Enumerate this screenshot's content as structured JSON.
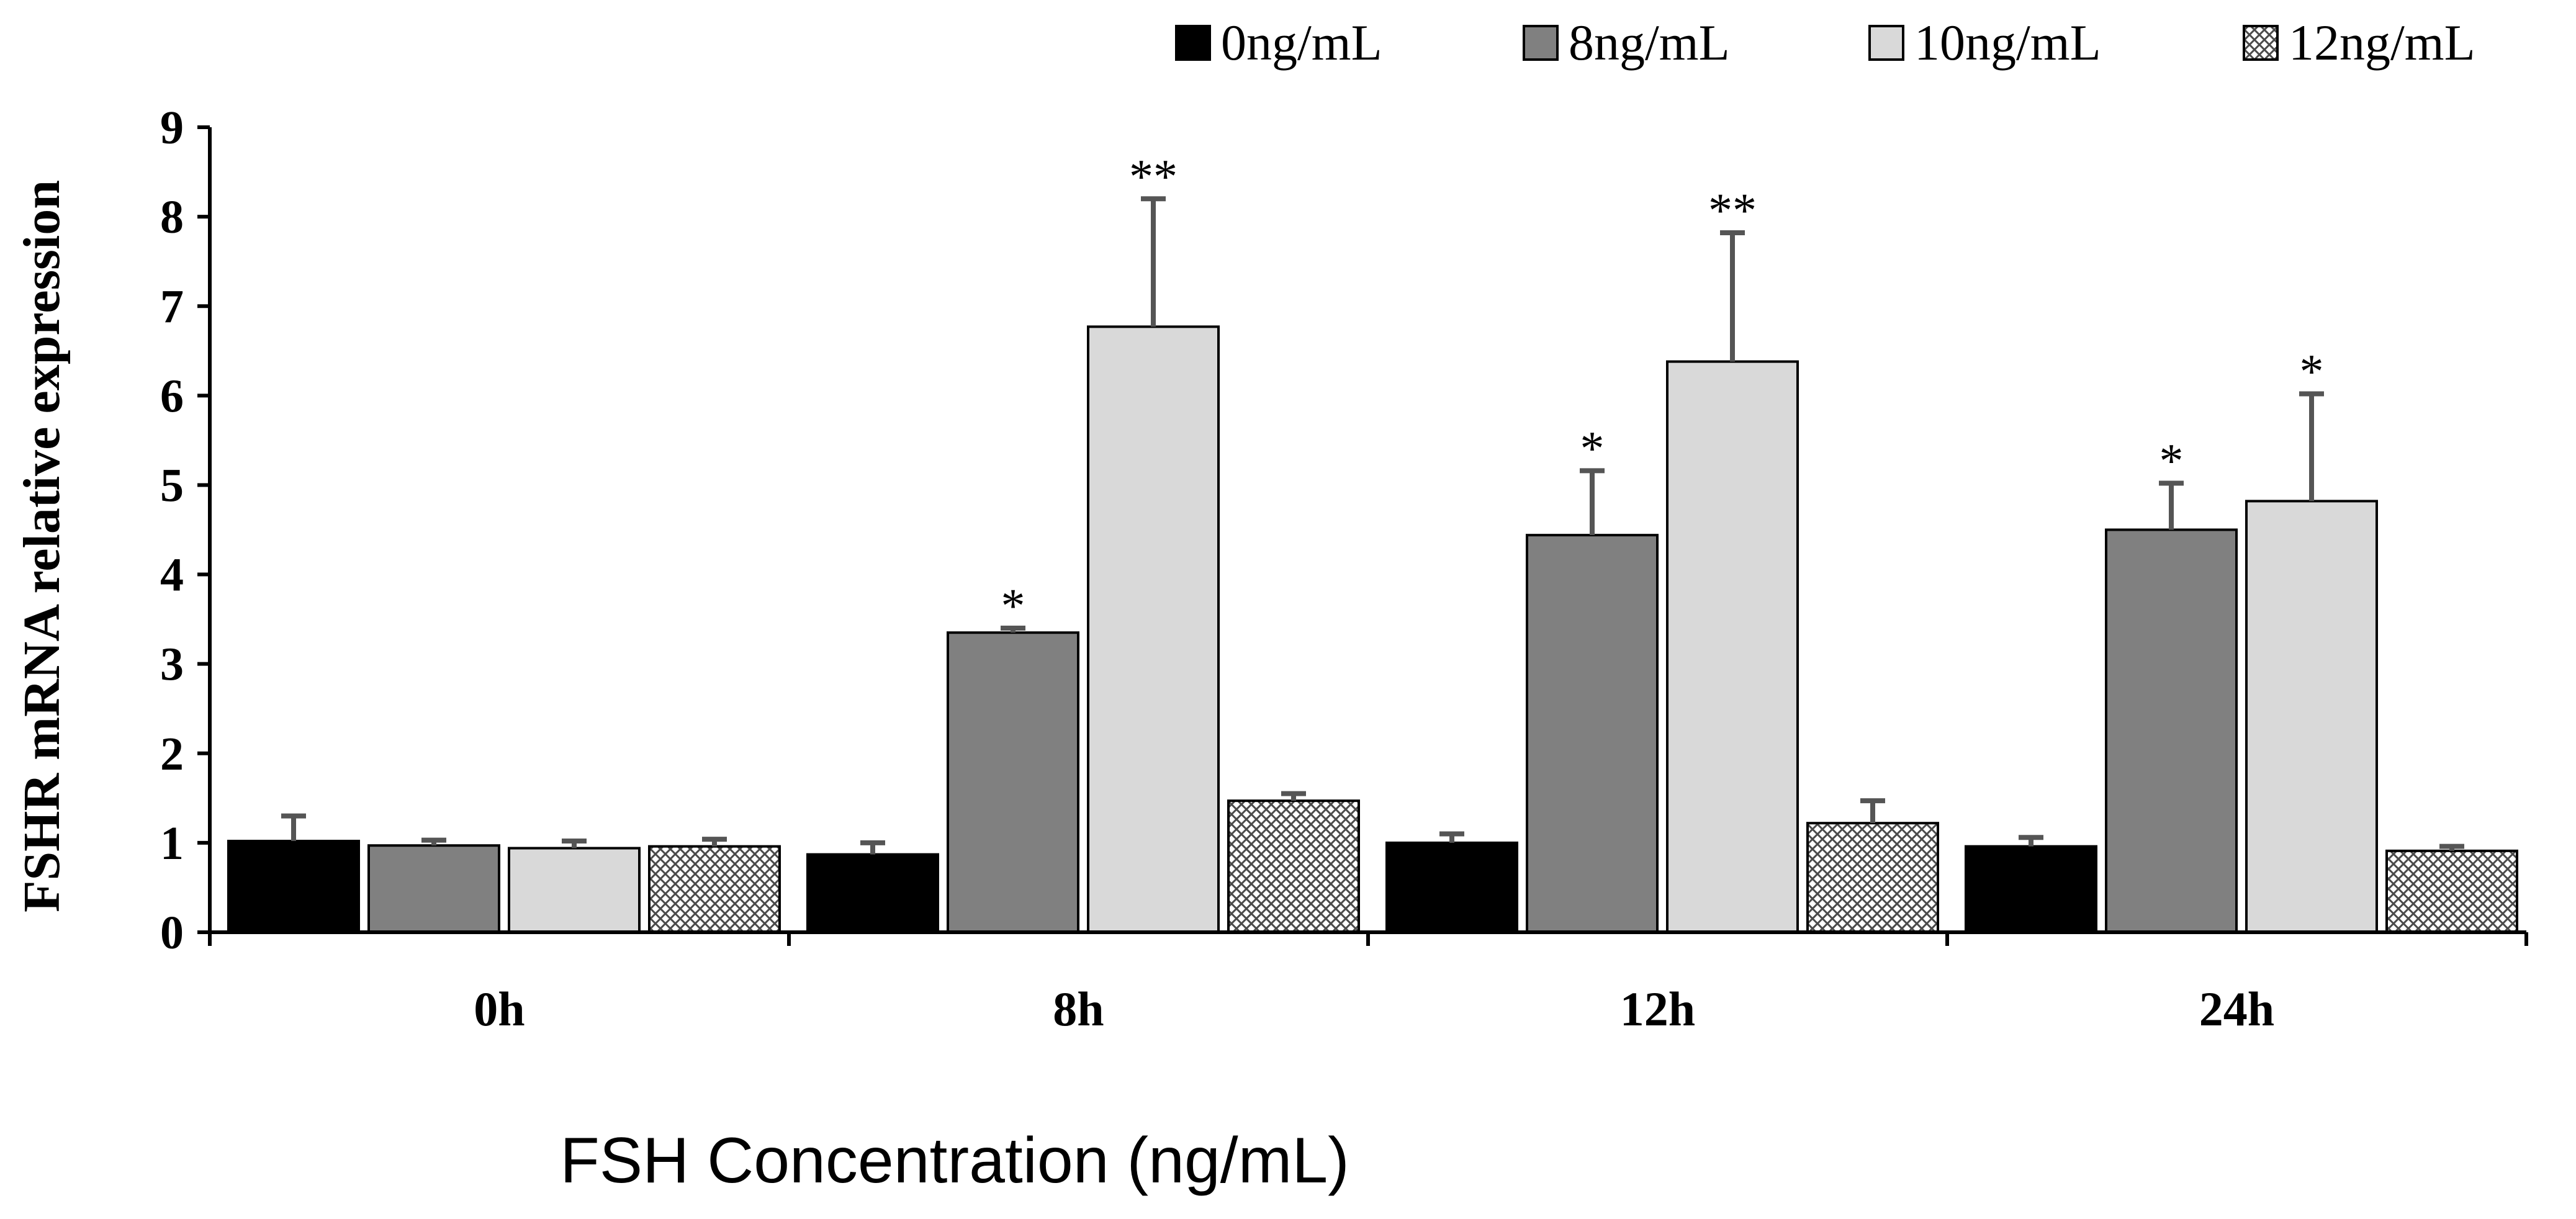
{
  "chart_data": {
    "type": "bar",
    "title": "",
    "xlabel": "FSH Concentration (ng/mL)",
    "ylabel": "FSHR mRNA relative expression",
    "ylim": [
      0,
      9
    ],
    "yticks": [
      "0",
      "1",
      "2",
      "3",
      "4",
      "5",
      "6",
      "7",
      "8",
      "9"
    ],
    "categories": [
      "0h",
      "8h",
      "12h",
      "24h"
    ],
    "legend_position": "top-right",
    "series": [
      {
        "name": "0ng/mL",
        "color": "#000000",
        "pattern": "solid",
        "values": [
          1.02,
          0.87,
          1.0,
          0.96
        ],
        "errors": [
          0.28,
          0.13,
          0.1,
          0.1
        ],
        "significance": [
          "",
          "",
          "",
          ""
        ]
      },
      {
        "name": "8ng/mL",
        "color": "#808080",
        "pattern": "solid",
        "values": [
          0.97,
          3.35,
          4.44,
          4.5
        ],
        "errors": [
          0.06,
          0.05,
          0.72,
          0.52
        ],
        "significance": [
          "",
          "*",
          "*",
          "*"
        ]
      },
      {
        "name": "10ng/mL",
        "color": "#D9D9D9",
        "pattern": "solid",
        "values": [
          0.94,
          6.77,
          6.38,
          4.82
        ],
        "errors": [
          0.08,
          1.43,
          1.44,
          1.2
        ],
        "significance": [
          "",
          "**",
          "**",
          "*"
        ]
      },
      {
        "name": "12ng/mL",
        "color": "#9A9A9A",
        "pattern": "crosshatch",
        "values": [
          0.96,
          1.47,
          1.22,
          0.91
        ],
        "errors": [
          0.08,
          0.08,
          0.25,
          0.05
        ],
        "significance": [
          "",
          "",
          "",
          ""
        ]
      }
    ]
  }
}
